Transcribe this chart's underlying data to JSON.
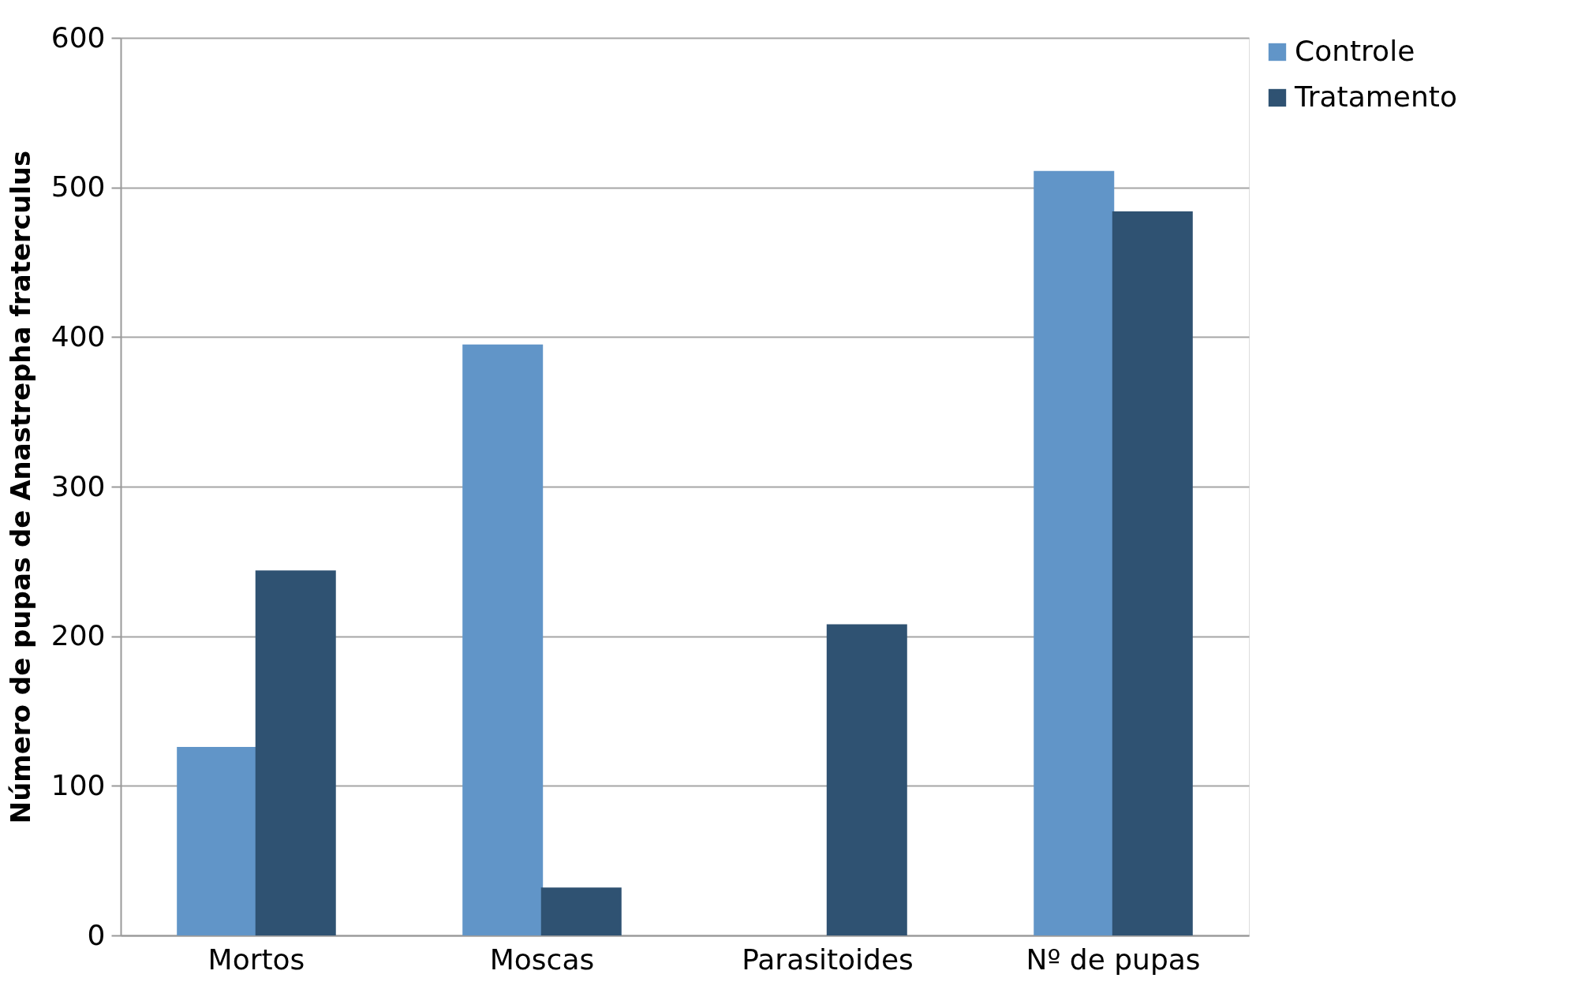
{
  "chart_data": {
    "type": "bar",
    "ylabel": "Número de pupas de Anastrepha fraterculus",
    "categories": [
      "Mortos",
      "Moscas",
      "Parasitoides",
      "Nº de pupas"
    ],
    "series": [
      {
        "name": "Controle",
        "color": "#6195c8",
        "values": [
          126,
          395,
          0,
          511
        ]
      },
      {
        "name": "Tratamento",
        "color": "#2f5272",
        "values": [
          244,
          32,
          208,
          484
        ]
      }
    ],
    "ylim": [
      0,
      600
    ],
    "yticks": [
      0,
      100,
      200,
      300,
      400,
      500,
      600
    ],
    "grid": "y",
    "legend": "right"
  }
}
